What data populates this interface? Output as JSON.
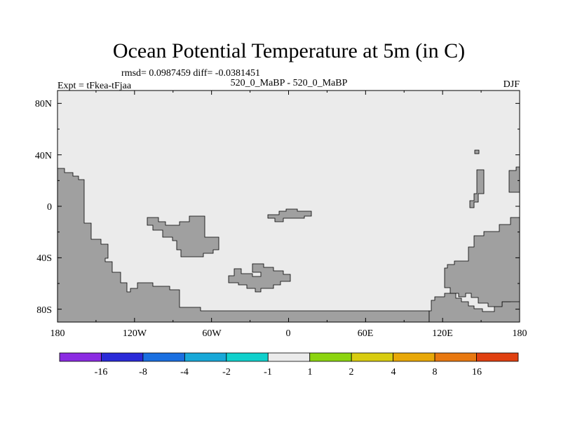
{
  "title": "Ocean Potential Temperature at 5m (in C)",
  "stats": "rmsd= 0.0987459 diff= -0.0381451",
  "experiment": "Expt = tFkea-tFjaa",
  "comparison": "520_0_MaBP - 520_0_MaBP",
  "season": "DJF",
  "map": {
    "projection": "cylindrical-equidistant",
    "lon_range": [
      -180,
      180
    ],
    "lat_range": [
      -90,
      90
    ],
    "ocean_color": "#ebebeb",
    "land_color": "#a0a0a0",
    "x_ticks": [
      "180",
      "120W",
      "60W",
      "0",
      "60E",
      "120E",
      "180"
    ],
    "y_ticks": [
      "80N",
      "40N",
      "0",
      "40S",
      "80S"
    ]
  },
  "colorbar": {
    "colors": [
      "#8b2be2",
      "#2a2ad8",
      "#1a6fe0",
      "#18a8d8",
      "#10d0cc",
      "#ebebeb",
      "#8cd410",
      "#d8cc10",
      "#e8a808",
      "#e87810",
      "#e04010"
    ],
    "labels": [
      "-16",
      "-8",
      "-4",
      "-2",
      "-1",
      "1",
      "2",
      "4",
      "8",
      "16"
    ]
  }
}
